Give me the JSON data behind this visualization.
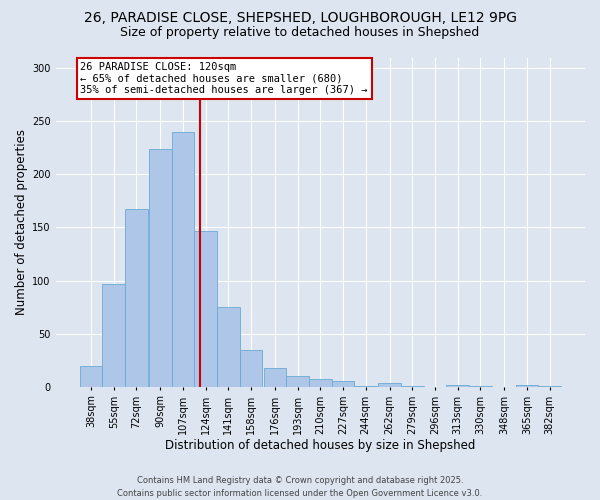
{
  "title1": "26, PARADISE CLOSE, SHEPSHED, LOUGHBOROUGH, LE12 9PG",
  "title2": "Size of property relative to detached houses in Shepshed",
  "xlabel": "Distribution of detached houses by size in Shepshed",
  "ylabel": "Number of detached properties",
  "bin_centers": [
    38,
    55,
    72,
    90,
    107,
    124,
    141,
    158,
    176,
    193,
    210,
    227,
    244,
    262,
    279,
    296,
    313,
    330,
    348,
    365,
    382
  ],
  "heights": [
    20,
    97,
    167,
    224,
    240,
    147,
    75,
    35,
    18,
    10,
    7,
    5,
    1,
    4,
    1,
    0,
    2,
    1,
    0,
    2,
    1
  ],
  "tick_labels": [
    "38sqm",
    "55sqm",
    "72sqm",
    "90sqm",
    "107sqm",
    "124sqm",
    "141sqm",
    "158sqm",
    "176sqm",
    "193sqm",
    "210sqm",
    "227sqm",
    "244sqm",
    "262sqm",
    "279sqm",
    "296sqm",
    "313sqm",
    "330sqm",
    "348sqm",
    "365sqm",
    "382sqm"
  ],
  "bin_width": 17,
  "bar_color": "#aec6e8",
  "bar_edge_color": "#6aaad4",
  "vline_x": 120,
  "vline_color": "#cc0000",
  "annotation_text": "26 PARADISE CLOSE: 120sqm\n← 65% of detached houses are smaller (680)\n35% of semi-detached houses are larger (367) →",
  "annotation_box_facecolor": "#ffffff",
  "annotation_box_edgecolor": "#cc0000",
  "ylim": [
    0,
    310
  ],
  "yticks": [
    0,
    50,
    100,
    150,
    200,
    250,
    300
  ],
  "background_color": "#dde5f0",
  "footer_text": "Contains HM Land Registry data © Crown copyright and database right 2025.\nContains public sector information licensed under the Open Government Licence v3.0.",
  "grid_color": "#ffffff",
  "title_fontsize": 10,
  "subtitle_fontsize": 9,
  "axis_label_fontsize": 8.5,
  "tick_fontsize": 7,
  "footer_fontsize": 6,
  "annotation_fontsize": 7.5
}
